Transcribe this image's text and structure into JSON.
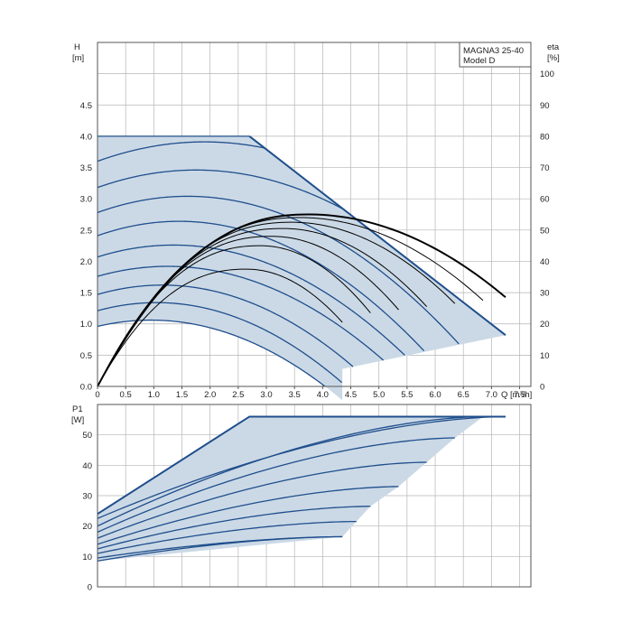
{
  "chart_data": [
    {
      "type": "line",
      "name": "head-chart",
      "title_lines": [
        "MAGNA3 25-40",
        "Model D"
      ],
      "xlabel": "Q [m³/h]",
      "xlim": [
        0,
        7.7
      ],
      "x_ticks": [
        0,
        0.5,
        1.0,
        1.5,
        2.0,
        2.5,
        3.0,
        3.5,
        4.0,
        4.5,
        5.0,
        5.5,
        6.0,
        6.5,
        7.0,
        7.5
      ],
      "x_tick_labels": [
        "0",
        "0.5",
        "1.0",
        "1.5",
        "2.0",
        "2.5",
        "3.0",
        "3.5",
        "4.0",
        "4.5",
        "5.0",
        "5.5",
        "6.0",
        "6.5",
        "7.0",
        "7.5"
      ],
      "ylabel_lines": [
        "H",
        "[m]"
      ],
      "ylim": [
        0,
        5.5
      ],
      "y_ticks": [
        0,
        0.5,
        1.0,
        1.5,
        2.0,
        2.5,
        3.0,
        3.5,
        4.0,
        4.5
      ],
      "y_tick_labels": [
        "0.0",
        "0.5",
        "1.0",
        "1.5",
        "2.0",
        "2.5",
        "3.0",
        "3.5",
        "4.0",
        "4.5"
      ],
      "y2label_lines": [
        "eta",
        "[%]"
      ],
      "y2lim": [
        0,
        110
      ],
      "y2_ticks": [
        0,
        10,
        20,
        30,
        40,
        50,
        60,
        70,
        80,
        90,
        100
      ],
      "grid": true,
      "operating_area": [
        [
          0,
          4.0
        ],
        [
          2.7,
          4.0
        ],
        [
          7.25,
          0.82
        ],
        [
          4.35,
          0.28
        ],
        [
          0,
          0.96
        ]
      ],
      "head_curves": [
        {
          "h0": 4.0,
          "k": 0.0,
          "q_end": 2.7,
          "flat": true
        },
        {
          "h0": 3.6,
          "peak_q": 1.9,
          "peak_h": 3.91
        },
        {
          "h0": 3.18,
          "peak_q": 1.75,
          "peak_h": 3.46
        },
        {
          "h0": 2.78,
          "peak_q": 1.6,
          "peak_h": 3.04
        },
        {
          "h0": 2.41,
          "peak_q": 1.45,
          "peak_h": 2.64
        },
        {
          "h0": 2.07,
          "peak_q": 1.35,
          "peak_h": 2.26
        },
        {
          "h0": 1.76,
          "peak_q": 1.25,
          "peak_h": 1.92
        },
        {
          "h0": 1.47,
          "peak_q": 1.15,
          "peak_h": 1.62
        },
        {
          "h0": 1.21,
          "peak_q": 1.05,
          "peak_h": 1.34
        },
        {
          "h0": 0.96,
          "peak_q": 0.95,
          "peak_h": 1.06
        }
      ],
      "efficiency_curves": [
        {
          "q_end": 7.25,
          "peak_q": 3.75,
          "peak_eta": 55,
          "end_eta": 28.5,
          "bold": true
        },
        {
          "q_end": 6.85,
          "peak_q": 3.6,
          "peak_eta": 54,
          "end_eta": 27.5
        },
        {
          "q_end": 6.35,
          "peak_q": 3.45,
          "peak_eta": 52.5,
          "end_eta": 26.5
        },
        {
          "q_end": 5.85,
          "peak_q": 3.3,
          "peak_eta": 50.5,
          "end_eta": 25.5
        },
        {
          "q_end": 5.35,
          "peak_q": 3.1,
          "peak_eta": 48,
          "end_eta": 24.5
        },
        {
          "q_end": 4.85,
          "peak_q": 2.9,
          "peak_eta": 45,
          "end_eta": 23.5
        },
        {
          "q_end": 4.35,
          "peak_q": 2.65,
          "peak_eta": 37.5,
          "end_eta": 20.5
        }
      ]
    },
    {
      "type": "line",
      "name": "power-chart",
      "xlim": [
        0,
        7.7
      ],
      "ylabel_lines": [
        "P1",
        "[W]"
      ],
      "ylim": [
        0,
        60
      ],
      "y_ticks": [
        0,
        10,
        20,
        30,
        40,
        50
      ],
      "y_tick_labels": [
        "0",
        "10",
        "20",
        "30",
        "40",
        "50"
      ],
      "grid": true,
      "operating_area": [
        [
          0,
          24
        ],
        [
          2.7,
          56
        ],
        [
          7.25,
          56
        ],
        [
          4.35,
          16.5
        ],
        [
          0,
          8.5
        ]
      ],
      "power_curves": [
        {
          "p0": 24,
          "p_top": 56,
          "q_top": 2.7,
          "q_end": 7.25,
          "flat_end": 56
        },
        {
          "p0": 22.5,
          "q_end": 7.25,
          "p_end": 56
        },
        {
          "p0": 20,
          "q_end": 6.85,
          "p_end": 56
        },
        {
          "p0": 18,
          "q_end": 6.35,
          "p_end": 49
        },
        {
          "p0": 16,
          "q_end": 5.85,
          "p_end": 41
        },
        {
          "p0": 14,
          "q_end": 5.35,
          "p_end": 33
        },
        {
          "p0": 12.5,
          "q_end": 4.85,
          "p_end": 26.5
        },
        {
          "p0": 11,
          "q_end": 4.6,
          "p_end": 21.5
        },
        {
          "p0": 9.5,
          "q_end": 4.35,
          "p_end": 16.5
        },
        {
          "p0": 8.5,
          "q_end": 4.35,
          "p_end": 16.5
        }
      ]
    }
  ]
}
